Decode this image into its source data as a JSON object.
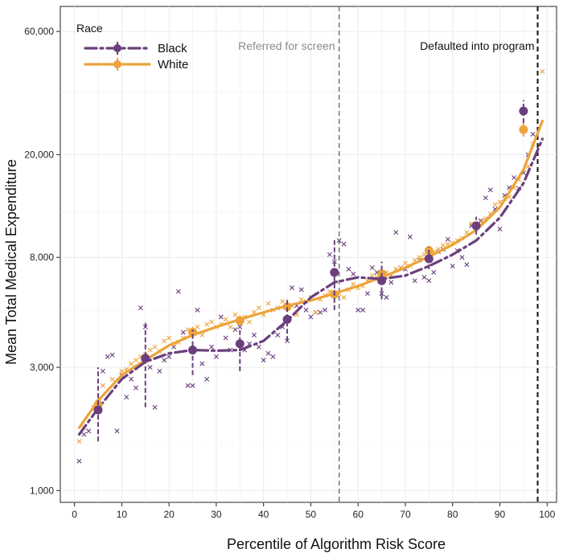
{
  "chart_data": {
    "type": "scatter",
    "xlabel": "Percentile of Algorithm Risk Score",
    "ylabel": "Mean Total Medical Expenditure",
    "xlim": [
      -3,
      102
    ],
    "ylim": [
      900,
      75000
    ],
    "y_scale": "log",
    "x_ticks": [
      0,
      10,
      20,
      30,
      40,
      50,
      60,
      70,
      80,
      90,
      100
    ],
    "y_ticks": [
      1000,
      3000,
      8000,
      20000,
      60000
    ],
    "y_tick_labels": [
      "1,000",
      "3,000",
      "8,000",
      "20,000",
      "60,000"
    ],
    "grid": true,
    "legend": {
      "title": "Race",
      "position": "top-left",
      "entries": [
        "Black",
        "White"
      ]
    },
    "colors": {
      "Black": "#6b3f7d",
      "White": "#eca33a",
      "ref_screen": "#777777",
      "ref_default": "#111111"
    },
    "annotations": [
      {
        "text": "Referred for screen",
        "x": 56
      },
      {
        "text": "Defaulted into program",
        "x": 98
      }
    ],
    "series": [
      {
        "name": "Black",
        "binned_means": [
          {
            "x": 5,
            "y": 2050,
            "low": 1550,
            "high": 3000
          },
          {
            "x": 15,
            "y": 3250,
            "low": 2100,
            "high": 4500
          },
          {
            "x": 25,
            "y": 3500,
            "low": 2800,
            "high": 4200
          },
          {
            "x": 35,
            "y": 3700,
            "low": 2900,
            "high": 4250
          },
          {
            "x": 45,
            "y": 4600,
            "low": 3800,
            "high": 5600
          },
          {
            "x": 55,
            "y": 7000,
            "low": 5000,
            "high": 9500
          },
          {
            "x": 65,
            "y": 6500,
            "low": 5500,
            "high": 7700
          },
          {
            "x": 75,
            "y": 7900,
            "low": 7200,
            "high": 8800
          },
          {
            "x": 85,
            "y": 10600,
            "low": 9800,
            "high": 11500
          },
          {
            "x": 95,
            "y": 29500,
            "low": 26500,
            "high": 32500
          }
        ],
        "smooth": [
          [
            1,
            1650
          ],
          [
            5,
            2080
          ],
          [
            10,
            2700
          ],
          [
            15,
            3150
          ],
          [
            20,
            3400
          ],
          [
            25,
            3500
          ],
          [
            30,
            3480
          ],
          [
            35,
            3500
          ],
          [
            40,
            3800
          ],
          [
            45,
            4550
          ],
          [
            50,
            5600
          ],
          [
            55,
            6400
          ],
          [
            60,
            6700
          ],
          [
            65,
            6600
          ],
          [
            70,
            6800
          ],
          [
            75,
            7400
          ],
          [
            80,
            8200
          ],
          [
            85,
            9300
          ],
          [
            90,
            11400
          ],
          [
            95,
            15500
          ],
          [
            99,
            23000
          ]
        ],
        "points": [
          [
            1,
            1300
          ],
          [
            2,
            1650
          ],
          [
            3,
            1700
          ],
          [
            5,
            2200
          ],
          [
            6,
            2900
          ],
          [
            7,
            3300
          ],
          [
            8,
            3350
          ],
          [
            9,
            1700
          ],
          [
            10,
            2800
          ],
          [
            11,
            2300
          ],
          [
            12,
            2700
          ],
          [
            13,
            2500
          ],
          [
            14,
            5100
          ],
          [
            15,
            4300
          ],
          [
            16,
            3000
          ],
          [
            17,
            2100
          ],
          [
            18,
            2900
          ],
          [
            19,
            3200
          ],
          [
            20,
            3300
          ],
          [
            21,
            3600
          ],
          [
            22,
            5900
          ],
          [
            23,
            4100
          ],
          [
            24,
            2550
          ],
          [
            25,
            2550
          ],
          [
            26,
            5000
          ],
          [
            27,
            3100
          ],
          [
            28,
            2700
          ],
          [
            29,
            3600
          ],
          [
            30,
            3300
          ],
          [
            31,
            4700
          ],
          [
            32,
            3900
          ],
          [
            33,
            3500
          ],
          [
            34,
            4200
          ],
          [
            35,
            4300
          ],
          [
            36,
            3500
          ],
          [
            37,
            3700
          ],
          [
            38,
            4000
          ],
          [
            39,
            3600
          ],
          [
            40,
            3200
          ],
          [
            41,
            3400
          ],
          [
            42,
            3300
          ],
          [
            43,
            4000
          ],
          [
            44,
            4300
          ],
          [
            45,
            3800
          ],
          [
            46,
            6100
          ],
          [
            47,
            5200
          ],
          [
            48,
            6000
          ],
          [
            49,
            5000
          ],
          [
            50,
            4700
          ],
          [
            51,
            4900
          ],
          [
            52,
            4900
          ],
          [
            53,
            5000
          ],
          [
            54,
            8200
          ],
          [
            55,
            7700
          ],
          [
            56,
            9300
          ],
          [
            57,
            9000
          ],
          [
            58,
            7200
          ],
          [
            59,
            6900
          ],
          [
            60,
            5000
          ],
          [
            61,
            5000
          ],
          [
            62,
            5800
          ],
          [
            63,
            7300
          ],
          [
            64,
            7000
          ],
          [
            65,
            5800
          ],
          [
            66,
            5600
          ],
          [
            67,
            6400
          ],
          [
            68,
            10000
          ],
          [
            69,
            7300
          ],
          [
            70,
            7200
          ],
          [
            71,
            9600
          ],
          [
            72,
            6500
          ],
          [
            73,
            7800
          ],
          [
            74,
            6700
          ],
          [
            75,
            6500
          ],
          [
            76,
            7000
          ],
          [
            77,
            8400
          ],
          [
            78,
            8600
          ],
          [
            79,
            9400
          ],
          [
            80,
            7400
          ],
          [
            81,
            8500
          ],
          [
            82,
            8000
          ],
          [
            83,
            7500
          ],
          [
            84,
            10600
          ],
          [
            85,
            10400
          ],
          [
            86,
            11100
          ],
          [
            87,
            13600
          ],
          [
            88,
            14600
          ],
          [
            89,
            12300
          ],
          [
            90,
            10300
          ],
          [
            91,
            13900
          ],
          [
            92,
            14900
          ],
          [
            93,
            16300
          ],
          [
            94,
            14800
          ],
          [
            95,
            17000
          ],
          [
            96,
            20000
          ],
          [
            97,
            24000
          ]
        ]
      },
      {
        "name": "White",
        "binned_means": [
          {
            "x": 5,
            "y": 2150,
            "low": 2000,
            "high": 2300
          },
          {
            "x": 15,
            "y": 3250,
            "low": 3100,
            "high": 3400
          },
          {
            "x": 25,
            "y": 4100,
            "low": 3900,
            "high": 4300
          },
          {
            "x": 35,
            "y": 4550,
            "low": 4350,
            "high": 4750
          },
          {
            "x": 45,
            "y": 5150,
            "low": 4950,
            "high": 5350
          },
          {
            "x": 55,
            "y": 5750,
            "low": 5550,
            "high": 5950
          },
          {
            "x": 65,
            "y": 6900,
            "low": 6650,
            "high": 7150
          },
          {
            "x": 75,
            "y": 8500,
            "low": 8200,
            "high": 8800
          },
          {
            "x": 85,
            "y": 10600,
            "low": 10200,
            "high": 11000
          },
          {
            "x": 95,
            "y": 25000,
            "low": 23500,
            "high": 26500
          }
        ],
        "smooth": [
          [
            1,
            1750
          ],
          [
            5,
            2230
          ],
          [
            10,
            2800
          ],
          [
            15,
            3200
          ],
          [
            20,
            3650
          ],
          [
            25,
            4000
          ],
          [
            30,
            4300
          ],
          [
            35,
            4600
          ],
          [
            40,
            4900
          ],
          [
            45,
            5200
          ],
          [
            50,
            5450
          ],
          [
            55,
            5800
          ],
          [
            60,
            6200
          ],
          [
            65,
            6700
          ],
          [
            70,
            7300
          ],
          [
            75,
            8050
          ],
          [
            80,
            8950
          ],
          [
            85,
            10200
          ],
          [
            90,
            12500
          ],
          [
            95,
            17500
          ],
          [
            99,
            27000
          ]
        ],
        "points": [
          [
            1,
            1550
          ],
          [
            2,
            1750
          ],
          [
            4,
            2100
          ],
          [
            6,
            2550
          ],
          [
            8,
            2700
          ],
          [
            10,
            2900
          ],
          [
            11,
            2950
          ],
          [
            12,
            3100
          ],
          [
            13,
            3200
          ],
          [
            14,
            3300
          ],
          [
            15,
            3350
          ],
          [
            16,
            3500
          ],
          [
            17,
            3600
          ],
          [
            18,
            3450
          ],
          [
            19,
            3800
          ],
          [
            20,
            3900
          ],
          [
            21,
            3700
          ],
          [
            22,
            3750
          ],
          [
            23,
            3900
          ],
          [
            24,
            4200
          ],
          [
            26,
            4300
          ],
          [
            27,
            4000
          ],
          [
            28,
            4400
          ],
          [
            29,
            4500
          ],
          [
            30,
            4300
          ],
          [
            31,
            4400
          ],
          [
            32,
            4600
          ],
          [
            33,
            4300
          ],
          [
            34,
            4800
          ],
          [
            36,
            4700
          ],
          [
            37,
            4500
          ],
          [
            38,
            4900
          ],
          [
            39,
            5100
          ],
          [
            40,
            4800
          ],
          [
            41,
            5300
          ],
          [
            42,
            5000
          ],
          [
            43,
            5100
          ],
          [
            44,
            5400
          ],
          [
            46,
            5200
          ],
          [
            47,
            4800
          ],
          [
            48,
            5500
          ],
          [
            49,
            5400
          ],
          [
            50,
            5600
          ],
          [
            51,
            4900
          ],
          [
            52,
            5500
          ],
          [
            53,
            5700
          ],
          [
            54,
            5900
          ],
          [
            56,
            5800
          ],
          [
            57,
            5600
          ],
          [
            58,
            6000
          ],
          [
            59,
            6300
          ],
          [
            60,
            6100
          ],
          [
            61,
            6200
          ],
          [
            62,
            6500
          ],
          [
            63,
            6800
          ],
          [
            64,
            6700
          ],
          [
            66,
            7000
          ],
          [
            67,
            6800
          ],
          [
            68,
            7200
          ],
          [
            69,
            7300
          ],
          [
            70,
            7600
          ],
          [
            71,
            7400
          ],
          [
            72,
            7800
          ],
          [
            73,
            8000
          ],
          [
            74,
            8200
          ],
          [
            76,
            8400
          ],
          [
            77,
            8600
          ],
          [
            78,
            8900
          ],
          [
            79,
            9000
          ],
          [
            80,
            9100
          ],
          [
            81,
            9300
          ],
          [
            82,
            9500
          ],
          [
            83,
            10000
          ],
          [
            84,
            10800
          ],
          [
            86,
            11000
          ],
          [
            87,
            11300
          ],
          [
            88,
            11800
          ],
          [
            89,
            12800
          ],
          [
            90,
            13100
          ],
          [
            91,
            13500
          ],
          [
            92,
            13700
          ],
          [
            93,
            14900
          ],
          [
            94,
            16000
          ],
          [
            96,
            18000
          ],
          [
            97,
            22000
          ],
          [
            99,
            42000
          ]
        ]
      }
    ]
  }
}
